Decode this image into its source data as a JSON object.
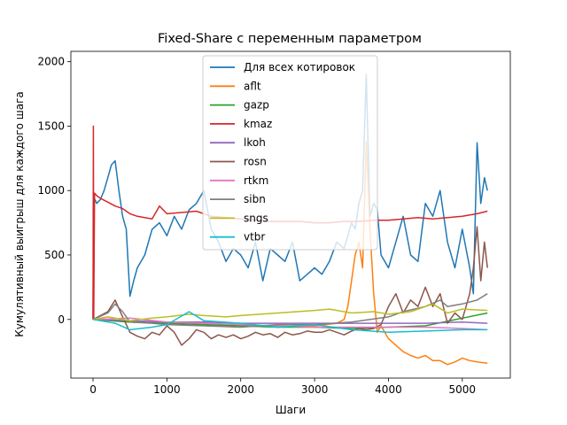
{
  "chart_data": {
    "type": "line",
    "title": "Fixed-Share с переменным параметром",
    "xlabel": "Шаги",
    "ylabel": "Кумулятивный выигрыш для каждого шага",
    "xlim": [
      -300,
      5650
    ],
    "ylim": [
      -455,
      2080
    ],
    "xticks": [
      0,
      1000,
      2000,
      3000,
      4000,
      5000
    ],
    "yticks": [
      0,
      500,
      1000,
      1500,
      2000
    ],
    "grid": false,
    "legend_position": "upper center",
    "series": [
      {
        "name": "Для всех котировок",
        "color": "#1f77b4",
        "x": [
          0,
          10,
          50,
          100,
          150,
          200,
          250,
          300,
          350,
          400,
          450,
          500,
          550,
          600,
          700,
          800,
          900,
          1000,
          1100,
          1200,
          1300,
          1400,
          1500,
          1600,
          1700,
          1800,
          1900,
          2000,
          2100,
          2200,
          2300,
          2400,
          2500,
          2600,
          2700,
          2800,
          2900,
          3000,
          3100,
          3200,
          3300,
          3400,
          3500,
          3550,
          3600,
          3650,
          3700,
          3750,
          3800,
          3850,
          3900,
          4000,
          4100,
          4200,
          4300,
          4400,
          4500,
          4600,
          4700,
          4800,
          4900,
          5000,
          5100,
          5150,
          5200,
          5250,
          5300,
          5340
        ],
        "y": [
          0,
          950,
          900,
          930,
          1000,
          1100,
          1200,
          1230,
          1000,
          800,
          700,
          180,
          300,
          400,
          500,
          700,
          750,
          650,
          800,
          700,
          850,
          900,
          1000,
          700,
          600,
          450,
          550,
          500,
          400,
          600,
          300,
          550,
          500,
          450,
          600,
          300,
          350,
          400,
          350,
          450,
          600,
          550,
          750,
          700,
          900,
          1000,
          1900,
          800,
          900,
          850,
          500,
          400,
          600,
          800,
          500,
          450,
          900,
          800,
          1000,
          600,
          400,
          700,
          400,
          200,
          1370,
          900,
          1100,
          1000
        ]
      },
      {
        "name": "aflt",
        "color": "#ff7f0e",
        "x": [
          0,
          500,
          1000,
          1500,
          2000,
          2500,
          3000,
          3300,
          3400,
          3450,
          3500,
          3550,
          3600,
          3650,
          3700,
          3750,
          3800,
          3850,
          3900,
          4000,
          4100,
          4200,
          4300,
          4400,
          4500,
          4600,
          4700,
          4800,
          4900,
          5000,
          5100,
          5200,
          5340
        ],
        "y": [
          0,
          -20,
          -30,
          -40,
          -50,
          -60,
          -50,
          -30,
          0,
          100,
          300,
          500,
          600,
          400,
          1380,
          700,
          200,
          -100,
          -50,
          -150,
          -200,
          -250,
          -280,
          -300,
          -280,
          -320,
          -320,
          -350,
          -330,
          -300,
          -320,
          -330,
          -340
        ]
      },
      {
        "name": "gazp",
        "color": "#2ca02c",
        "x": [
          0,
          500,
          1000,
          1500,
          2000,
          2500,
          3000,
          3500,
          4000,
          4500,
          5000,
          5340
        ],
        "y": [
          0,
          -20,
          -30,
          -40,
          -50,
          -60,
          -60,
          -70,
          -60,
          -50,
          10,
          50
        ]
      },
      {
        "name": "kmaz",
        "color": "#d62728",
        "x": [
          0,
          5,
          10,
          20,
          50,
          100,
          200,
          300,
          400,
          500,
          600,
          700,
          800,
          900,
          1000,
          1200,
          1400,
          1600,
          1800,
          2000,
          2200,
          2400,
          2600,
          2800,
          3000,
          3200,
          3400,
          3600,
          3800,
          4000,
          4200,
          4400,
          4600,
          4800,
          5000,
          5200,
          5340
        ],
        "y": [
          0,
          1500,
          0,
          980,
          960,
          940,
          910,
          880,
          860,
          820,
          800,
          790,
          780,
          880,
          820,
          830,
          840,
          800,
          790,
          780,
          770,
          760,
          760,
          760,
          750,
          750,
          760,
          760,
          770,
          770,
          780,
          790,
          780,
          790,
          800,
          820,
          840
        ]
      },
      {
        "name": "lkoh",
        "color": "#9467bd",
        "x": [
          0,
          500,
          1000,
          1500,
          2000,
          2500,
          3000,
          3500,
          4000,
          4500,
          5000,
          5340
        ],
        "y": [
          0,
          -10,
          -20,
          -20,
          -30,
          -30,
          -30,
          -30,
          -30,
          -30,
          -20,
          -30
        ]
      },
      {
        "name": "rosn",
        "color": "#8c564b",
        "x": [
          0,
          200,
          300,
          400,
          500,
          600,
          700,
          800,
          900,
          1000,
          1100,
          1200,
          1300,
          1400,
          1500,
          1600,
          1700,
          1800,
          1900,
          2000,
          2100,
          2200,
          2300,
          2400,
          2500,
          2600,
          2700,
          2800,
          2900,
          3000,
          3100,
          3200,
          3300,
          3400,
          3500,
          3600,
          3700,
          3800,
          3900,
          4000,
          4100,
          4200,
          4300,
          4400,
          4500,
          4600,
          4700,
          4800,
          4900,
          5000,
          5100,
          5150,
          5200,
          5250,
          5300,
          5340
        ],
        "y": [
          0,
          60,
          150,
          20,
          -100,
          -130,
          -150,
          -100,
          -120,
          -50,
          -100,
          -200,
          -150,
          -80,
          -100,
          -150,
          -120,
          -140,
          -120,
          -150,
          -130,
          -100,
          -120,
          -110,
          -140,
          -100,
          -120,
          -110,
          -90,
          -100,
          -100,
          -80,
          -100,
          -120,
          -90,
          -70,
          -80,
          -70,
          -40,
          100,
          200,
          50,
          150,
          100,
          250,
          100,
          200,
          -30,
          50,
          0,
          200,
          400,
          720,
          300,
          600,
          400
        ]
      },
      {
        "name": "rtkm",
        "color": "#e377c2",
        "x": [
          0,
          500,
          1000,
          1500,
          2000,
          2500,
          3000,
          3500,
          4000,
          4500,
          5000,
          5340
        ],
        "y": [
          0,
          10,
          -20,
          -30,
          -40,
          -50,
          -60,
          -60,
          -60,
          -60,
          -70,
          -80
        ]
      },
      {
        "name": "sibn",
        "color": "#7f7f7f",
        "x": [
          0,
          200,
          300,
          400,
          500,
          800,
          1000,
          1500,
          2000,
          2500,
          3000,
          3500,
          4000,
          4200,
          4500,
          4700,
          4800,
          5000,
          5200,
          5340
        ],
        "y": [
          0,
          50,
          120,
          60,
          -20,
          -30,
          -40,
          -50,
          -60,
          -40,
          -40,
          -20,
          20,
          60,
          100,
          150,
          100,
          120,
          150,
          200
        ]
      },
      {
        "name": "sngs",
        "color": "#bcbd22",
        "x": [
          0,
          200,
          500,
          800,
          1000,
          1300,
          1500,
          1800,
          2000,
          2500,
          3000,
          3200,
          3500,
          3800,
          4000,
          4300,
          4600,
          4800,
          5000,
          5340
        ],
        "y": [
          0,
          20,
          -10,
          10,
          20,
          40,
          30,
          20,
          30,
          50,
          70,
          80,
          50,
          60,
          40,
          60,
          120,
          50,
          80,
          70
        ]
      },
      {
        "name": "vtbr",
        "color": "#17becf",
        "x": [
          0,
          300,
          500,
          800,
          1000,
          1300,
          1500,
          2000,
          2500,
          3000,
          3500,
          4000,
          4500,
          5000,
          5340
        ],
        "y": [
          0,
          -30,
          -80,
          -60,
          -40,
          60,
          -10,
          -30,
          -60,
          -40,
          -80,
          -100,
          -90,
          -80,
          -80
        ]
      }
    ]
  }
}
